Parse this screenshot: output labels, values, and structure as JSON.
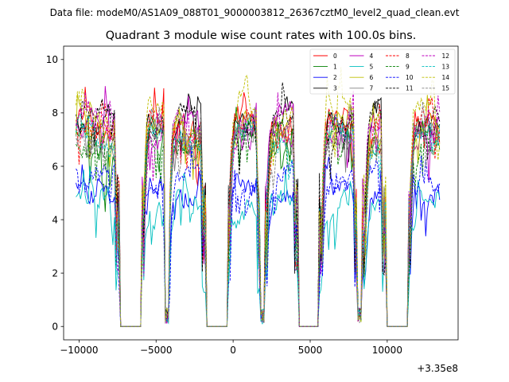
{
  "figure": {
    "suptitle": "Data file: modeM0/AS1A09_088T01_9000003812_26367cztM0_level2_quad_clean.evt"
  },
  "chart_data": {
    "type": "line",
    "title": "Quadrant 3 module wise count rates with 100.0s bins.",
    "xlabel": "",
    "ylabel": "",
    "x_offset_label": "+3.35e8",
    "xlim": [
      -11000,
      14600
    ],
    "ylim": [
      -0.5,
      10.5
    ],
    "x_ticks": [
      -10000,
      -5000,
      0,
      5000,
      10000
    ],
    "x_tick_labels": [
      "−10000",
      "−5000",
      "0",
      "5000",
      "10000"
    ],
    "y_ticks": [
      0,
      2,
      4,
      6,
      8,
      10
    ],
    "y_tick_labels": [
      "0",
      "2",
      "4",
      "6",
      "8",
      "10"
    ],
    "legend_position": "top-right",
    "x_range": [
      -10200,
      13400
    ],
    "bin_width": 100,
    "gaps": [
      [
        -7400,
        -6000
      ],
      [
        -1800,
        -400
      ],
      [
        1800,
        2000
      ],
      [
        4200,
        5600
      ],
      [
        8100,
        8400
      ],
      [
        9900,
        11300
      ]
    ],
    "zero_segments": [
      [
        -7300,
        -6000
      ],
      [
        -1700,
        -400
      ],
      [
        4300,
        5500
      ],
      [
        10000,
        11300
      ]
    ],
    "dips": [
      -4300,
      1900,
      8200
    ],
    "series": [
      {
        "name": "0",
        "color": "#ff0000",
        "dash": "solid",
        "level": 7.4
      },
      {
        "name": "1",
        "color": "#008000",
        "dash": "solid",
        "level": 7.0
      },
      {
        "name": "2",
        "color": "#0000ff",
        "dash": "solid",
        "level": 5.2
      },
      {
        "name": "3",
        "color": "#000000",
        "dash": "solid",
        "level": 7.9
      },
      {
        "name": "4",
        "color": "#bf00bf",
        "dash": "solid",
        "level": 7.5
      },
      {
        "name": "5",
        "color": "#00bfbf",
        "dash": "solid",
        "level": 4.5
      },
      {
        "name": "6",
        "color": "#bfbf00",
        "dash": "solid",
        "level": 7.3
      },
      {
        "name": "7",
        "color": "#808080",
        "dash": "solid",
        "level": 7.1
      },
      {
        "name": "8",
        "color": "#ff0000",
        "dash": "dashed",
        "level": 7.6
      },
      {
        "name": "9",
        "color": "#008000",
        "dash": "dashed",
        "level": 7.2
      },
      {
        "name": "10",
        "color": "#0000ff",
        "dash": "dashed",
        "level": 5.5
      },
      {
        "name": "11",
        "color": "#000000",
        "dash": "dashed",
        "level": 7.7
      },
      {
        "name": "12",
        "color": "#bf00bf",
        "dash": "dashed",
        "level": 7.4
      },
      {
        "name": "13",
        "color": "#00bfbf",
        "dash": "dashed",
        "level": 7.0
      },
      {
        "name": "14",
        "color": "#bfbf00",
        "dash": "dashed",
        "level": 8.1
      },
      {
        "name": "15",
        "color": "#808080",
        "dash": "dashed",
        "level": 7.2
      }
    ]
  }
}
